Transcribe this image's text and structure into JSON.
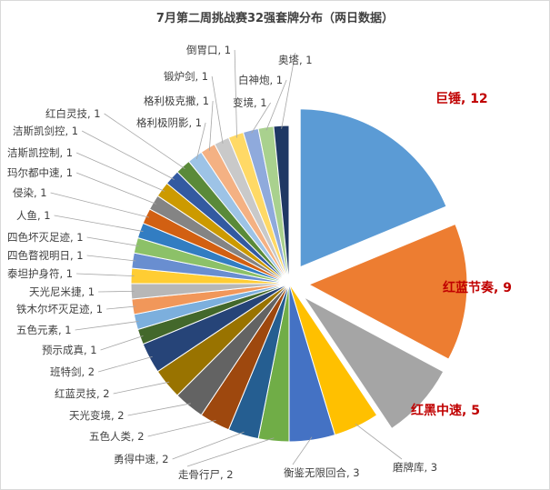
{
  "chart_data": {
    "type": "pie",
    "title": "7月第二周挑战赛32强套牌分布（两日数据）",
    "exploded": [
      "巨锤",
      "红蓝节奏",
      "红黑中速"
    ],
    "slices": [
      {
        "label": "巨锤",
        "value": 12,
        "color": "#5b9bd5"
      },
      {
        "label": "红蓝节奏",
        "value": 9,
        "color": "#ed7d31"
      },
      {
        "label": "红黑中速",
        "value": 5,
        "color": "#a5a5a5"
      },
      {
        "label": "磨牌库",
        "value": 3,
        "color": "#ffc000"
      },
      {
        "label": "衡鉴无限回合",
        "value": 3,
        "color": "#4472c4"
      },
      {
        "label": "走骨行尸",
        "value": 2,
        "color": "#70ad47"
      },
      {
        "label": "勇得中速",
        "value": 2,
        "color": "#255e91"
      },
      {
        "label": "五色人类",
        "value": 2,
        "color": "#9e480e"
      },
      {
        "label": "天光变境",
        "value": 2,
        "color": "#636363"
      },
      {
        "label": "红蓝灵技",
        "value": 2,
        "color": "#997300"
      },
      {
        "label": "班特剑",
        "value": 2,
        "color": "#264478"
      },
      {
        "label": "预示成真",
        "value": 1,
        "color": "#43682b"
      },
      {
        "label": "五色元素",
        "value": 1,
        "color": "#7cafdd"
      },
      {
        "label": "铁木尔坏灭足迹",
        "value": 1,
        "color": "#f1975a"
      },
      {
        "label": "天光尼米捷",
        "value": 1,
        "color": "#b7b7b7"
      },
      {
        "label": "泰坦护身符",
        "value": 1,
        "color": "#ffcd33"
      },
      {
        "label": "四色瞀视明日",
        "value": 1,
        "color": "#698ed0"
      },
      {
        "label": "四色坏灭足迹",
        "value": 1,
        "color": "#8cc168"
      },
      {
        "label": "人鱼",
        "value": 1,
        "color": "#327dc2"
      },
      {
        "label": "侵染",
        "value": 1,
        "color": "#d26012"
      },
      {
        "label": "玛尔都中速",
        "value": 1,
        "color": "#848484"
      },
      {
        "label": "洁斯凯控制",
        "value": 1,
        "color": "#cc9a00"
      },
      {
        "label": "洁斯凯剑控",
        "value": 1,
        "color": "#335aa1"
      },
      {
        "label": "红白灵技",
        "value": 1,
        "color": "#5a8a39"
      },
      {
        "label": "格利极阴影",
        "value": 1,
        "color": "#9dc3e6"
      },
      {
        "label": "格利极克撒",
        "value": 1,
        "color": "#f4b183"
      },
      {
        "label": "锻炉剑",
        "value": 1,
        "color": "#c9c9c9"
      },
      {
        "label": "倒胃口",
        "value": 1,
        "color": "#ffd966"
      },
      {
        "label": "变境",
        "value": 1,
        "color": "#8faadc"
      },
      {
        "label": "白神炮",
        "value": 1,
        "color": "#a9d18e"
      },
      {
        "label": "奥塔",
        "value": 1,
        "color": "#1f3864"
      }
    ]
  }
}
